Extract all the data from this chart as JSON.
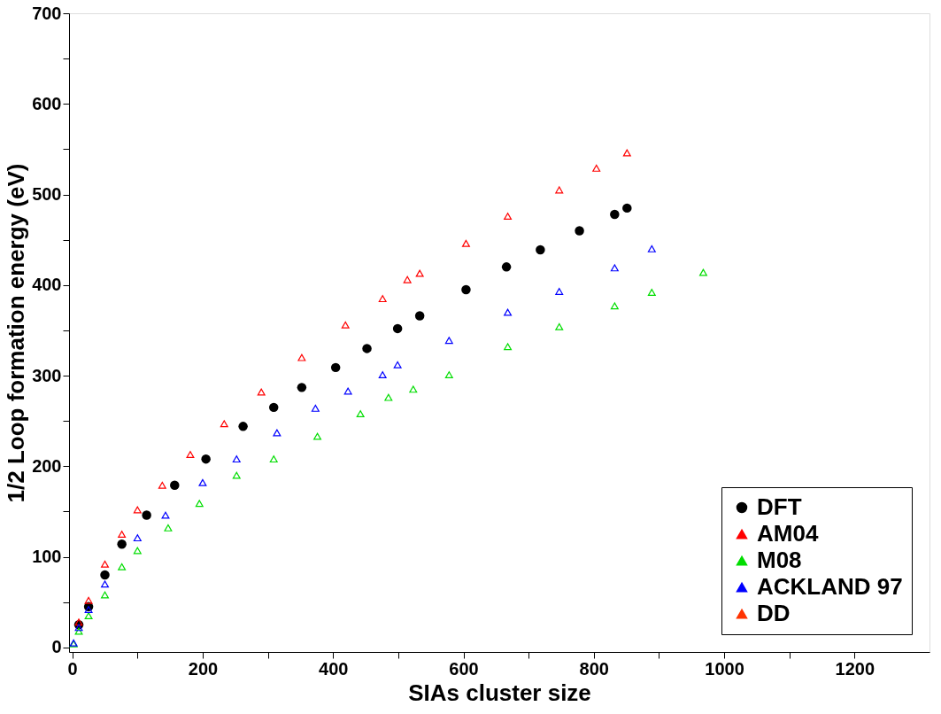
{
  "chart_data": {
    "type": "scatter",
    "xlabel": "SIAs cluster size",
    "ylabel": "1/2 Loop formation energy (eV)",
    "xlim": [
      -5,
      1315
    ],
    "ylim": [
      -5,
      700
    ],
    "xticks": [
      0,
      {
        "value": 100,
        "label": null
      },
      200,
      {
        "value": 300,
        "label": null
      },
      400,
      {
        "value": 500,
        "label": null
      },
      600,
      {
        "value": 700,
        "label": null
      },
      800,
      {
        "value": 900,
        "label": null
      },
      1000,
      {
        "value": 1100,
        "label": null
      },
      1200
    ],
    "yticks": [
      0,
      {
        "value": 50,
        "label": null
      },
      100,
      {
        "value": 150,
        "label": null
      },
      200,
      {
        "value": 250,
        "label": null
      },
      300,
      {
        "value": 350,
        "label": null
      },
      400,
      {
        "value": 450,
        "label": null
      },
      500,
      {
        "value": 550,
        "label": null
      },
      600,
      {
        "value": 650,
        "label": null
      },
      700
    ],
    "grid": false,
    "legend": "bottom right",
    "series": [
      {
        "name": "DFT",
        "color": "#000000",
        "marker": "circle",
        "x": [
          10,
          25,
          50,
          76,
          114,
          157,
          205,
          262,
          309,
          352,
          404,
          452,
          499,
          533,
          604,
          666,
          718,
          778,
          832,
          851
        ],
        "values": [
          25,
          45,
          80,
          114,
          146,
          179,
          208,
          244,
          265,
          287,
          309,
          330,
          352,
          366,
          395,
          420,
          439,
          460,
          478,
          485
        ]
      },
      {
        "name": "AM04",
        "color": "#ff0000",
        "marker": "triangle",
        "x": [
          10,
          25,
          50,
          76,
          100,
          138,
          181,
          233,
          290,
          352,
          419,
          476,
          514,
          533,
          604,
          668,
          747,
          804,
          851
        ],
        "values": [
          28,
          52,
          92,
          125,
          152,
          179,
          213,
          247,
          282,
          320,
          356,
          385,
          406,
          413,
          446,
          476,
          505,
          529,
          546
        ]
      },
      {
        "name": "M08",
        "color": "#00dd00",
        "marker": "triangle",
        "x": [
          2,
          10,
          25,
          50,
          76,
          100,
          147,
          195,
          252,
          309,
          376,
          442,
          485,
          523,
          578,
          668,
          747,
          832,
          889,
          968
        ],
        "values": [
          4,
          18,
          35,
          58,
          89,
          107,
          132,
          159,
          190,
          208,
          233,
          258,
          276,
          285,
          301,
          332,
          354,
          377,
          392,
          414
        ]
      },
      {
        "name": "ACKLAND 97",
        "color": "#0000ff",
        "marker": "triangle",
        "x": [
          2,
          10,
          25,
          50,
          100,
          143,
          200,
          252,
          314,
          373,
          423,
          476,
          499,
          578,
          668,
          747,
          832,
          889
        ],
        "values": [
          5,
          22,
          42,
          70,
          121,
          146,
          182,
          208,
          237,
          264,
          283,
          301,
          312,
          339,
          370,
          393,
          419,
          440
        ]
      },
      {
        "name": "DD",
        "color": "#ff3300",
        "marker": "triangle"
      }
    ]
  }
}
